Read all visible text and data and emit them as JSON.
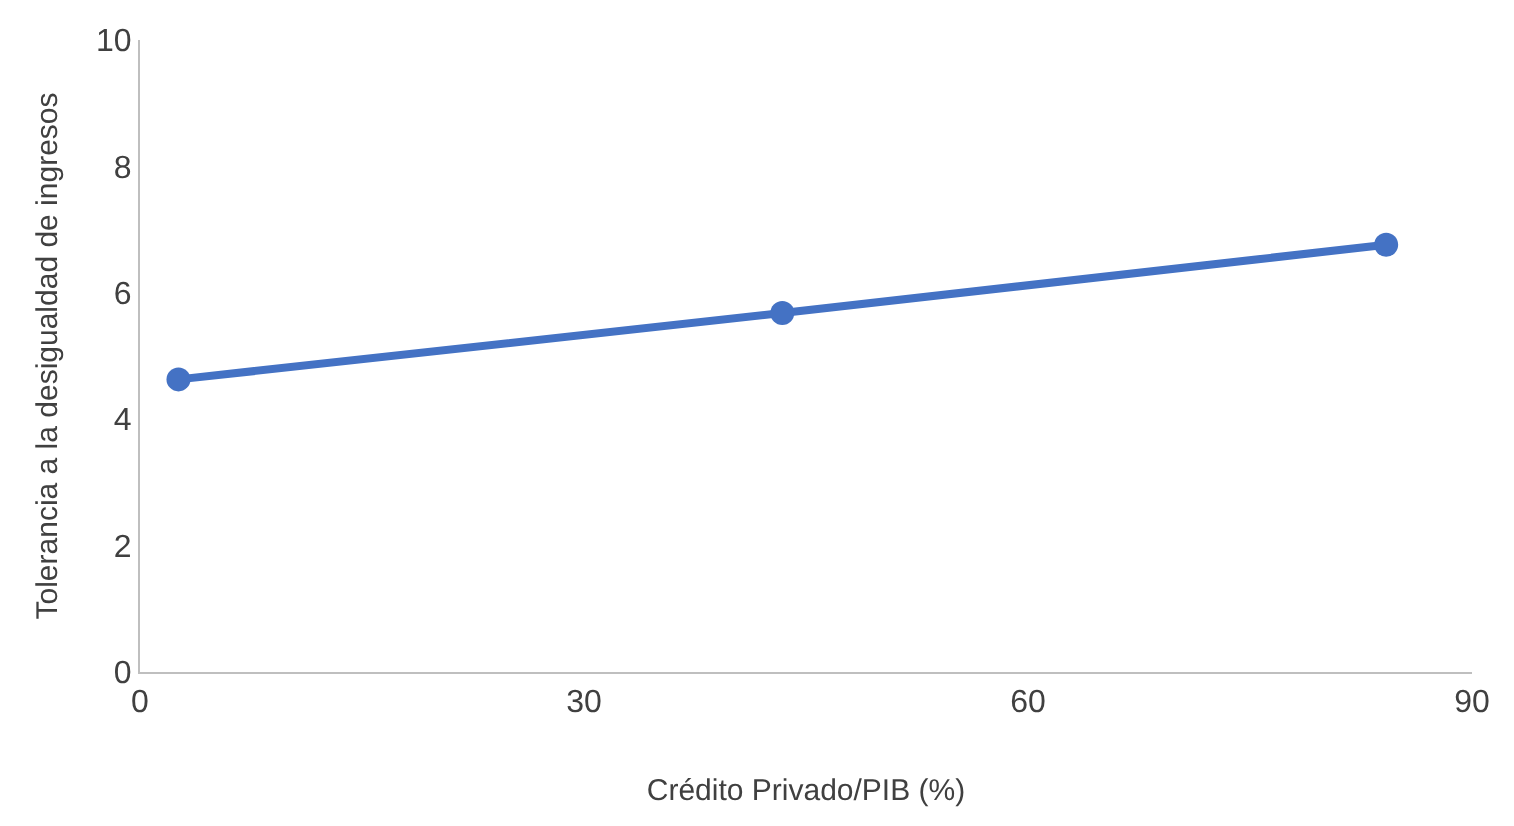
{
  "chart_data": {
    "type": "line",
    "xlabel": "Crédito Privado/PIB (%)",
    "ylabel": "Tolerancia a la desigualdad de ingresos",
    "x": [
      2.6,
      43.4,
      84.2
    ],
    "series": [
      {
        "color": "#4472c4",
        "values": [
          4.63,
          5.68,
          6.76
        ]
      }
    ],
    "xlim": [
      0,
      90
    ],
    "xticks": [
      0,
      30,
      60,
      90
    ],
    "ylim": [
      0,
      10
    ],
    "yticks": [
      0,
      2,
      4,
      6,
      8,
      10
    ],
    "marker": "circle",
    "line_style": "solid"
  }
}
